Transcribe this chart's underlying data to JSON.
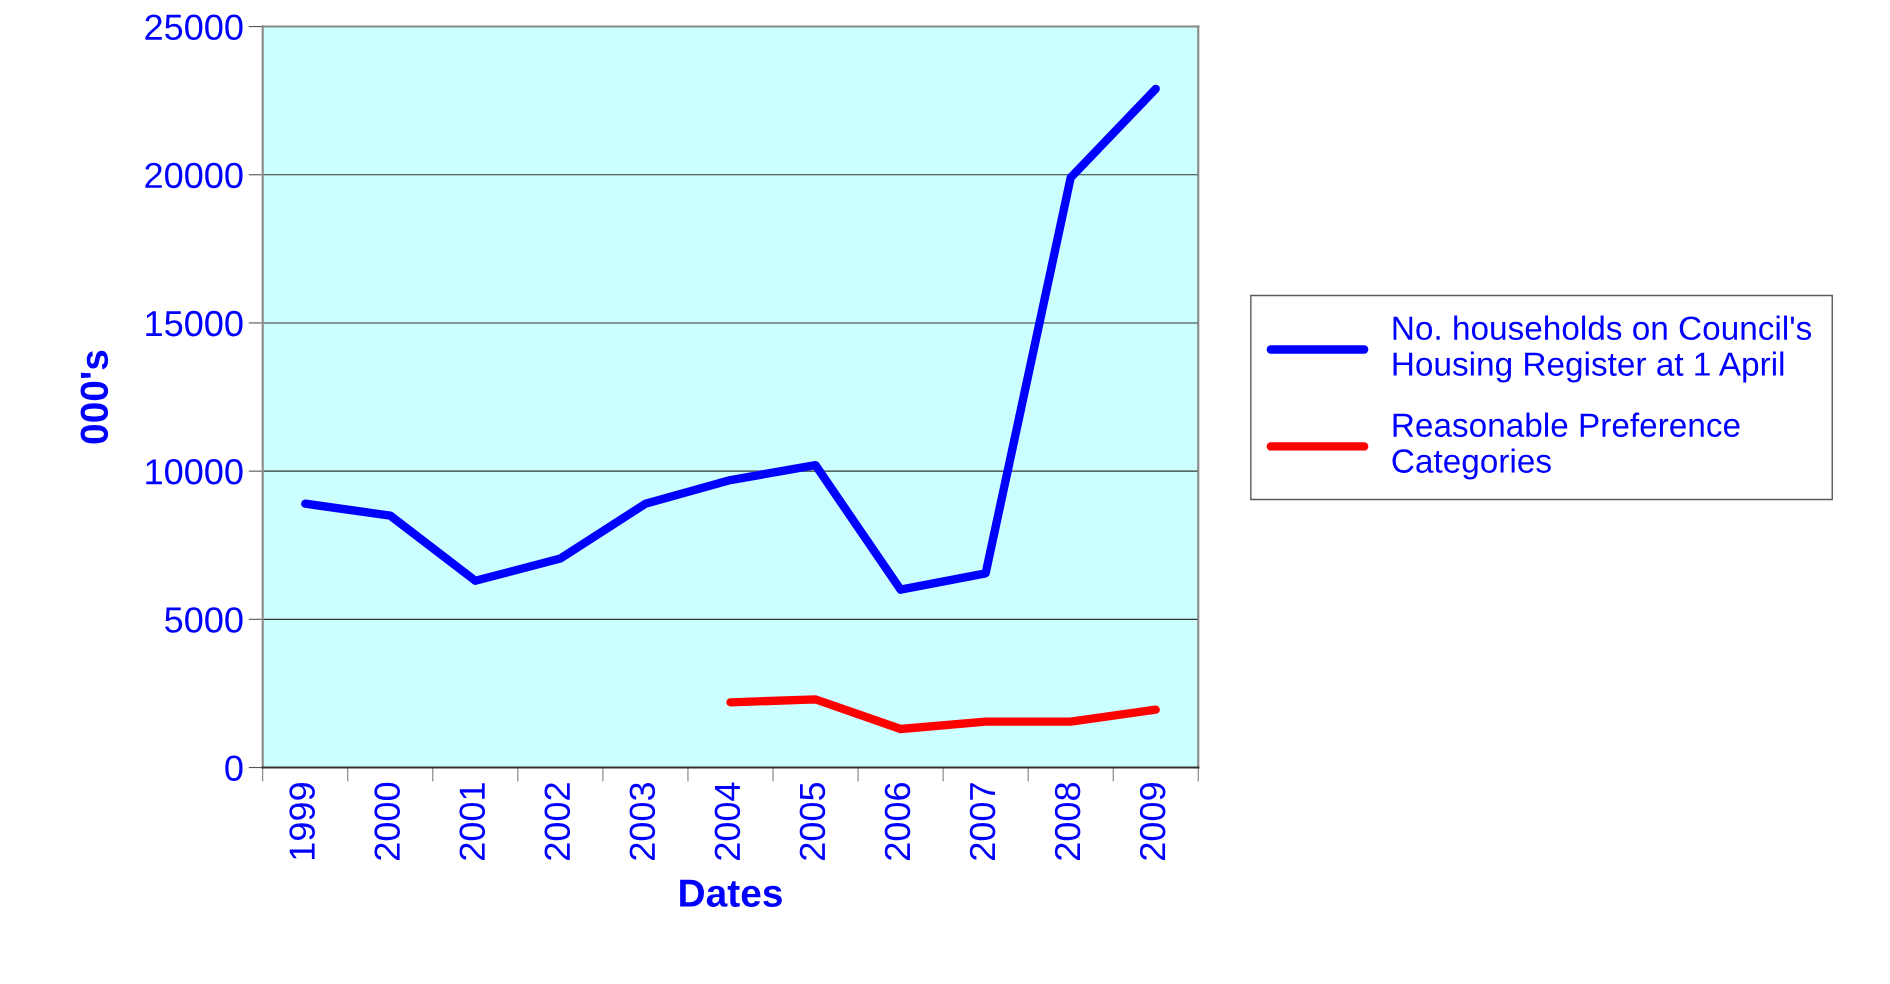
{
  "chart_data": {
    "type": "line",
    "xlabel": "Dates",
    "ylabel": "000's",
    "categories": [
      "1999",
      "2000",
      "2001",
      "2002",
      "2003",
      "2004",
      "2005",
      "2006",
      "2007",
      "2008",
      "2009"
    ],
    "series": [
      {
        "name": "No. households on Council's\nHousing Register at 1 April",
        "color": "#0000ff",
        "values": [
          8900,
          8500,
          6300,
          7050,
          8900,
          9700,
          10200,
          6000,
          6550,
          19900,
          22900
        ]
      },
      {
        "name": "Reasonable Preference\nCategories",
        "color": "#ff0000",
        "values": [
          null,
          null,
          null,
          null,
          null,
          2200,
          2300,
          1300,
          1550,
          1550,
          1950
        ]
      }
    ],
    "ylim": [
      0,
      25000
    ],
    "yticks": [
      0,
      5000,
      10000,
      15000,
      20000,
      25000
    ],
    "grid": "y",
    "legend": "right",
    "marker": "none",
    "line_style": "solid"
  }
}
